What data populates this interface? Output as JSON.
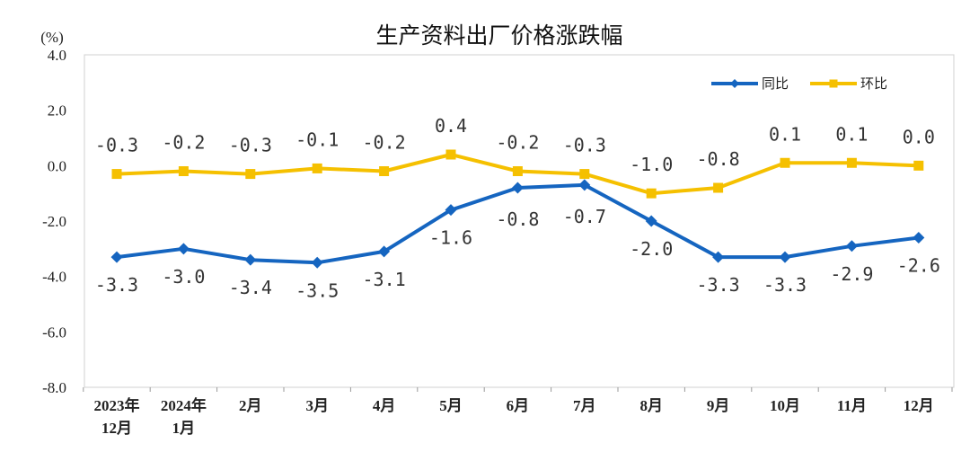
{
  "chart_data": {
    "type": "line",
    "title": "生产资料出厂价格涨跌幅",
    "y_unit": "(%)",
    "ylim": [
      -8.0,
      4.0
    ],
    "yticks": [
      "4.0",
      "2.0",
      "0.0",
      "-2.0",
      "-4.0",
      "-6.0",
      "-8.0"
    ],
    "categories": [
      [
        "2023年",
        "12月"
      ],
      [
        "2024年",
        "1月"
      ],
      [
        "2月"
      ],
      [
        "3月"
      ],
      [
        "4月"
      ],
      [
        "5月"
      ],
      [
        "6月"
      ],
      [
        "7月"
      ],
      [
        "8月"
      ],
      [
        "9月"
      ],
      [
        "10月"
      ],
      [
        "11月"
      ],
      [
        "12月"
      ]
    ],
    "series": [
      {
        "name": "同比",
        "color": "#1565C0",
        "marker": "diamond",
        "values": [
          -3.3,
          -3.0,
          -3.4,
          -3.5,
          -3.1,
          -1.6,
          -0.8,
          -0.7,
          -2.0,
          -3.3,
          -3.3,
          -2.9,
          -2.6
        ],
        "labels": [
          "-3.3",
          "-3.0",
          "-3.4",
          "-3.5",
          "-3.1",
          "-1.6",
          "-0.8",
          "-0.7",
          "-2.0",
          "-3.3",
          "-3.3",
          "-2.9",
          "-2.6"
        ]
      },
      {
        "name": "环比",
        "color": "#F5C000",
        "marker": "square",
        "values": [
          -0.3,
          -0.2,
          -0.3,
          -0.1,
          -0.2,
          0.4,
          -0.2,
          -0.3,
          -1.0,
          -0.8,
          0.1,
          0.1,
          0.0
        ],
        "labels": [
          "-0.3",
          "-0.2",
          "-0.3",
          "-0.1",
          "-0.2",
          "0.4",
          "-0.2",
          "-0.3",
          "-1.0",
          "-0.8",
          "0.1",
          "0.1",
          "0.0"
        ]
      }
    ],
    "legend_position": "top-right",
    "grid": false
  }
}
